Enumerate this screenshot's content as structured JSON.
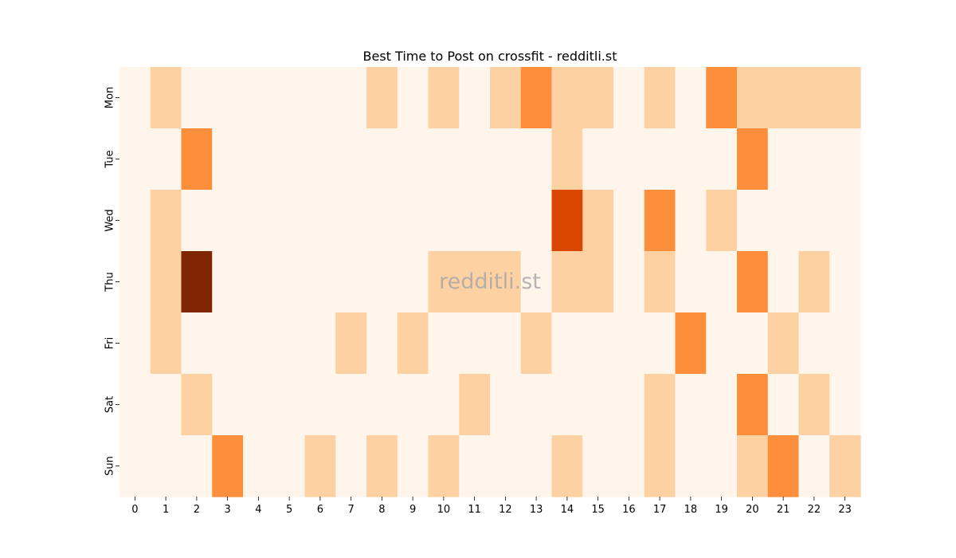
{
  "chart_data": {
    "type": "heatmap",
    "title": "Best Time to Post on crossfit - redditli.st",
    "watermark": "redditli.st",
    "xlabel": "",
    "ylabel": "",
    "x": [
      "0",
      "1",
      "2",
      "3",
      "4",
      "5",
      "6",
      "7",
      "8",
      "9",
      "10",
      "11",
      "12",
      "13",
      "14",
      "15",
      "16",
      "17",
      "18",
      "19",
      "20",
      "21",
      "22",
      "23"
    ],
    "y": [
      "Mon",
      "Tue",
      "Wed",
      "Thu",
      "Fri",
      "Sat",
      "Sun"
    ],
    "colorscale": "Oranges",
    "vmin": 0,
    "vmax": 4,
    "values": [
      [
        0,
        1,
        0,
        0,
        0,
        0,
        0,
        0,
        1,
        0,
        1,
        0,
        1,
        2,
        1,
        1,
        0,
        1,
        0,
        2,
        1,
        1,
        1,
        1
      ],
      [
        0,
        0,
        2,
        0,
        0,
        0,
        0,
        0,
        0,
        0,
        0,
        0,
        0,
        0,
        1,
        0,
        0,
        0,
        0,
        0,
        2,
        0,
        0,
        0
      ],
      [
        0,
        1,
        0,
        0,
        0,
        0,
        0,
        0,
        0,
        0,
        0,
        0,
        0,
        0,
        3,
        1,
        0,
        2,
        0,
        1,
        0,
        0,
        0,
        0
      ],
      [
        0,
        1,
        4,
        0,
        0,
        0,
        0,
        0,
        0,
        0,
        1,
        1,
        1,
        0,
        1,
        1,
        0,
        1,
        0,
        0,
        2,
        0,
        1,
        0
      ],
      [
        0,
        1,
        0,
        0,
        0,
        0,
        0,
        1,
        0,
        1,
        0,
        0,
        0,
        1,
        0,
        0,
        0,
        0,
        2,
        0,
        0,
        1,
        0,
        0
      ],
      [
        0,
        0,
        1,
        0,
        0,
        0,
        0,
        0,
        0,
        0,
        0,
        1,
        0,
        0,
        0,
        0,
        0,
        1,
        0,
        0,
        2,
        0,
        1,
        0
      ],
      [
        0,
        0,
        0,
        2,
        0,
        0,
        1,
        0,
        1,
        0,
        1,
        0,
        0,
        0,
        1,
        0,
        0,
        1,
        0,
        0,
        1,
        2,
        0,
        1
      ]
    ],
    "colors": [
      "#fff5eb",
      "#fdd1a2",
      "#fd8e3c",
      "#d94701",
      "#7f2704"
    ],
    "grid": false,
    "legend": "none"
  }
}
